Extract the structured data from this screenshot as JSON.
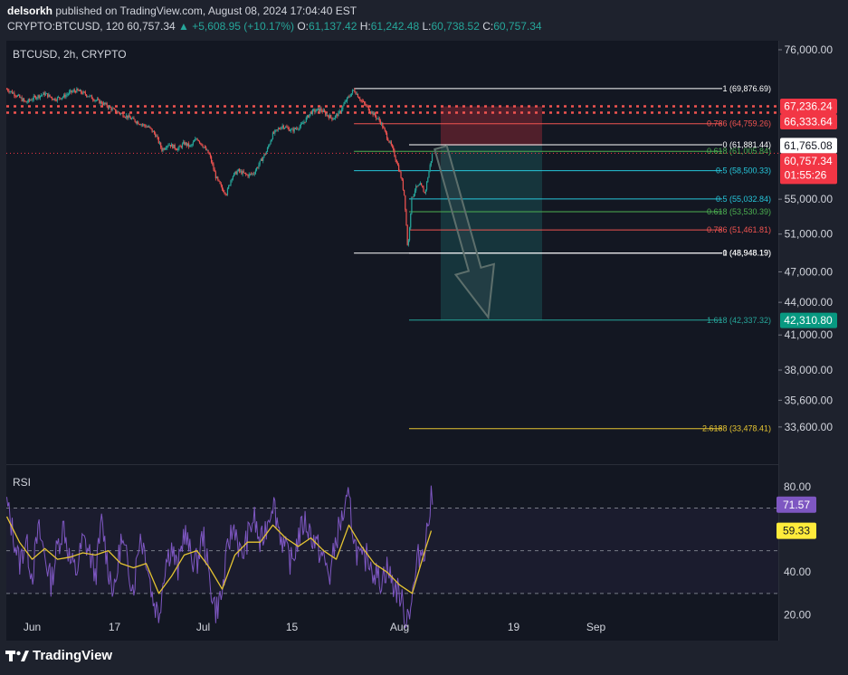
{
  "header": {
    "author": "delsorkh",
    "published_text": "published on TradingView.com, August 08, 2024 17:04:40 EST",
    "symbol": "CRYPTO:BTCUSD, 120",
    "last": "60,757.34",
    "change": "▲ +5,608.95 (+10.17%)",
    "o_label": "O:",
    "o_value": "61,137.42",
    "h_label": "H:",
    "h_value": "61,242.48",
    "l_label": "L:",
    "l_value": "60,738.52",
    "c_label": "C:",
    "c_value": "60,757.34"
  },
  "legend": {
    "pane_title": "BTCUSD, 2h, CRYPTO",
    "rsi_title": "RSI"
  },
  "footer": {
    "brand": "TradingView"
  },
  "colors": {
    "background": "#1e222d",
    "pane": "#131722",
    "up": "#26a69a",
    "down": "#ef5350",
    "rsi": "#7e57c2",
    "rsi_ma": "#e5c432",
    "price_line": "#f23645"
  },
  "chart_data": {
    "type": "candlestick",
    "price_axis": {
      "range": [
        31000,
        77500
      ],
      "ticks": [
        {
          "value": 76000,
          "label": "76,000.00"
        },
        {
          "value": 55000,
          "label": "55,000.00"
        },
        {
          "value": 51000,
          "label": "51,000.00"
        },
        {
          "value": 47000,
          "label": "47,000.00"
        },
        {
          "value": 44000,
          "label": "44,000.00"
        },
        {
          "value": 41000,
          "label": "41,000.00"
        },
        {
          "value": 38000,
          "label": "38,000.00"
        },
        {
          "value": 35600,
          "label": "35,600.00"
        },
        {
          "value": 33600,
          "label": "33,600.00"
        }
      ]
    },
    "price_badges": [
      {
        "value": 67236.24,
        "label": "67,236.24",
        "style": "red"
      },
      {
        "value": 66333.64,
        "label": "66,333.64",
        "style": "red"
      },
      {
        "value": 61765.08,
        "label": "61,765.08",
        "style": "white"
      },
      {
        "value": 60757.34,
        "label": "60,757.34",
        "style": "red"
      },
      {
        "value": 42310.8,
        "label": "42,310.80",
        "style": "green"
      }
    ],
    "countdown": "01:55:26",
    "time_axis": [
      {
        "label": "Jun",
        "day": 4
      },
      {
        "label": "17",
        "day": 17
      },
      {
        "label": "Jul",
        "day": 31
      },
      {
        "label": "15",
        "day": 45
      },
      {
        "label": "Aug",
        "day": 62
      },
      {
        "label": "19",
        "day": 80
      },
      {
        "label": "Sep",
        "day": 93
      }
    ],
    "price_path": [
      [
        0.0,
        69800
      ],
      [
        1.5,
        68900
      ],
      [
        3.0,
        67800
      ],
      [
        4.5,
        68600
      ],
      [
        6.0,
        69100
      ],
      [
        7.5,
        68300
      ],
      [
        9.0,
        68700
      ],
      [
        10.0,
        69300
      ],
      [
        11.0,
        69600
      ],
      [
        12.5,
        69000
      ],
      [
        14.0,
        68200
      ],
      [
        15.5,
        67500
      ],
      [
        17.0,
        66600
      ],
      [
        18.5,
        66000
      ],
      [
        20.0,
        65300
      ],
      [
        21.5,
        64600
      ],
      [
        22.5,
        64200
      ],
      [
        23.5,
        63200
      ],
      [
        24.5,
        61200
      ],
      [
        25.5,
        62000
      ],
      [
        27.0,
        61300
      ],
      [
        28.0,
        62100
      ],
      [
        29.0,
        61600
      ],
      [
        30.0,
        62800
      ],
      [
        31.0,
        61700
      ],
      [
        32.0,
        60500
      ],
      [
        33.0,
        57700
      ],
      [
        34.0,
        56200
      ],
      [
        34.7,
        55700
      ],
      [
        35.5,
        57700
      ],
      [
        36.5,
        58500
      ],
      [
        38.0,
        57900
      ],
      [
        39.0,
        58200
      ],
      [
        40.0,
        59600
      ],
      [
        41.0,
        61000
      ],
      [
        42.0,
        63300
      ],
      [
        43.5,
        64500
      ],
      [
        45.0,
        63800
      ],
      [
        46.5,
        64500
      ],
      [
        48.0,
        66400
      ],
      [
        49.5,
        66800
      ],
      [
        50.5,
        66000
      ],
      [
        51.5,
        65500
      ],
      [
        52.5,
        66300
      ],
      [
        53.5,
        68000
      ],
      [
        54.8,
        69700
      ],
      [
        56.0,
        68000
      ],
      [
        57.5,
        66500
      ],
      [
        59.0,
        65000
      ],
      [
        60.0,
        63000
      ],
      [
        60.8,
        61500
      ],
      [
        61.6,
        59500
      ],
      [
        62.3,
        57500
      ],
      [
        62.8,
        55200
      ],
      [
        63.3,
        49200
      ],
      [
        63.9,
        55000
      ],
      [
        64.5,
        56300
      ],
      [
        65.3,
        56700
      ],
      [
        66.0,
        55700
      ],
      [
        66.7,
        58700
      ],
      [
        67.2,
        60757
      ]
    ],
    "fibonacci": [
      {
        "label": "1 (69,876.69)",
        "value": 69876.69,
        "color": "#ffffff",
        "start_day": 54.8
      },
      {
        "label": "0.786 (64,759.26)",
        "value": 64759.26,
        "color": "#ef5350",
        "start_day": 54.8
      },
      {
        "label": "0.618 (61,005.84)",
        "value": 61005.84,
        "color": "#4caf50",
        "start_day": 54.8
      },
      {
        "label": "0.5 (58,500.33)",
        "value": 58500.33,
        "color": "#26c6da",
        "start_day": 54.8
      },
      {
        "label": "0 (48,948.19)",
        "value": 48948.19,
        "color": "#ffffff",
        "start_day": 54.8
      },
      {
        "label": "0 (61,881.44)",
        "value": 61881.44,
        "color": "#ffffff",
        "start_day": 63.5
      },
      {
        "label": "0.5 (55,032.84)",
        "value": 55032.84,
        "color": "#26c6da",
        "start_day": 63.5
      },
      {
        "label": "0.618 (53,530.39)",
        "value": 53530.39,
        "color": "#4caf50",
        "start_day": 63.5
      },
      {
        "label": "0.786 (51,461.81)",
        "value": 51461.81,
        "color": "#ef5350",
        "start_day": 63.5
      },
      {
        "label": "1 (48,948.19)",
        "value": 48948.19,
        "color": "#ffffff",
        "start_day": 63.5
      },
      {
        "label": "1.618 (42,337.32)",
        "value": 42337.32,
        "color": "#26a69a",
        "start_day": 63.5
      },
      {
        "label": "2.6188 (33,478.41)",
        "value": 33478.41,
        "color": "#e5c432",
        "start_day": 63.5
      }
    ],
    "resistance_lines": [
      67236.24,
      66333.64
    ],
    "short_position": {
      "entry": 61765.08,
      "stop": 67236.24,
      "target": 42310.8,
      "start_day": 68.5,
      "end_day": 84.5
    },
    "arrow": {
      "from_day": 68.5,
      "from_price": 61500,
      "to_day": 76.0,
      "to_price": 42600
    },
    "rsi": {
      "axis_ticks": [
        {
          "value": 80,
          "label": "80.00"
        },
        {
          "value": 40,
          "label": "40.00"
        },
        {
          "value": 20,
          "label": "20.00"
        }
      ],
      "range": [
        10,
        88
      ],
      "band": [
        30,
        70
      ],
      "last_rsi": 71.57,
      "last_rsi_label": "71.57",
      "last_ma": 59.33,
      "last_ma_label": "59.33",
      "rsi_path": [
        [
          0,
          72
        ],
        [
          1,
          58
        ],
        [
          2,
          44
        ],
        [
          3,
          55
        ],
        [
          4,
          38
        ],
        [
          5,
          60
        ],
        [
          6,
          48
        ],
        [
          7,
          35
        ],
        [
          8,
          52
        ],
        [
          9,
          62
        ],
        [
          10,
          45
        ],
        [
          11,
          40
        ],
        [
          12,
          55
        ],
        [
          13,
          50
        ],
        [
          14,
          38
        ],
        [
          15,
          64
        ],
        [
          16,
          42
        ],
        [
          17,
          30
        ],
        [
          18,
          55
        ],
        [
          19,
          45
        ],
        [
          20,
          32
        ],
        [
          21,
          58
        ],
        [
          22,
          48
        ],
        [
          23,
          28
        ],
        [
          24,
          20
        ],
        [
          25,
          44
        ],
        [
          26,
          52
        ],
        [
          27,
          40
        ],
        [
          28,
          60
        ],
        [
          29,
          48
        ],
        [
          30,
          44
        ],
        [
          31,
          58
        ],
        [
          32,
          36
        ],
        [
          33,
          22
        ],
        [
          34,
          30
        ],
        [
          35,
          54
        ],
        [
          36,
          62
        ],
        [
          37,
          46
        ],
        [
          38,
          56
        ],
        [
          39,
          66
        ],
        [
          40,
          52
        ],
        [
          41,
          62
        ],
        [
          42,
          74
        ],
        [
          43,
          60
        ],
        [
          44,
          50
        ],
        [
          45,
          44
        ],
        [
          46,
          56
        ],
        [
          47,
          64
        ],
        [
          48,
          58
        ],
        [
          49,
          52
        ],
        [
          50,
          46
        ],
        [
          51,
          38
        ],
        [
          52,
          56
        ],
        [
          53,
          66
        ],
        [
          54,
          74
        ],
        [
          55,
          52
        ],
        [
          56,
          44
        ],
        [
          57,
          48
        ],
        [
          58,
          40
        ],
        [
          59,
          36
        ],
        [
          60,
          42
        ],
        [
          61,
          34
        ],
        [
          62,
          30
        ],
        [
          63,
          18
        ],
        [
          64,
          28
        ],
        [
          65,
          48
        ],
        [
          66,
          52
        ],
        [
          67,
          74
        ]
      ],
      "ma_path": [
        [
          0,
          66
        ],
        [
          2,
          54
        ],
        [
          4,
          46
        ],
        [
          6,
          51
        ],
        [
          8,
          46
        ],
        [
          10,
          47
        ],
        [
          12,
          49
        ],
        [
          14,
          48
        ],
        [
          16,
          50
        ],
        [
          18,
          44
        ],
        [
          20,
          42
        ],
        [
          22,
          44
        ],
        [
          24,
          30
        ],
        [
          26,
          38
        ],
        [
          28,
          48
        ],
        [
          30,
          50
        ],
        [
          32,
          42
        ],
        [
          34,
          32
        ],
        [
          36,
          48
        ],
        [
          38,
          54
        ],
        [
          40,
          54
        ],
        [
          42,
          62
        ],
        [
          44,
          56
        ],
        [
          46,
          52
        ],
        [
          48,
          56
        ],
        [
          50,
          50
        ],
        [
          52,
          46
        ],
        [
          54,
          62
        ],
        [
          56,
          52
        ],
        [
          58,
          44
        ],
        [
          60,
          40
        ],
        [
          62,
          34
        ],
        [
          64,
          30
        ],
        [
          66,
          50
        ],
        [
          67,
          59.33
        ]
      ]
    }
  }
}
